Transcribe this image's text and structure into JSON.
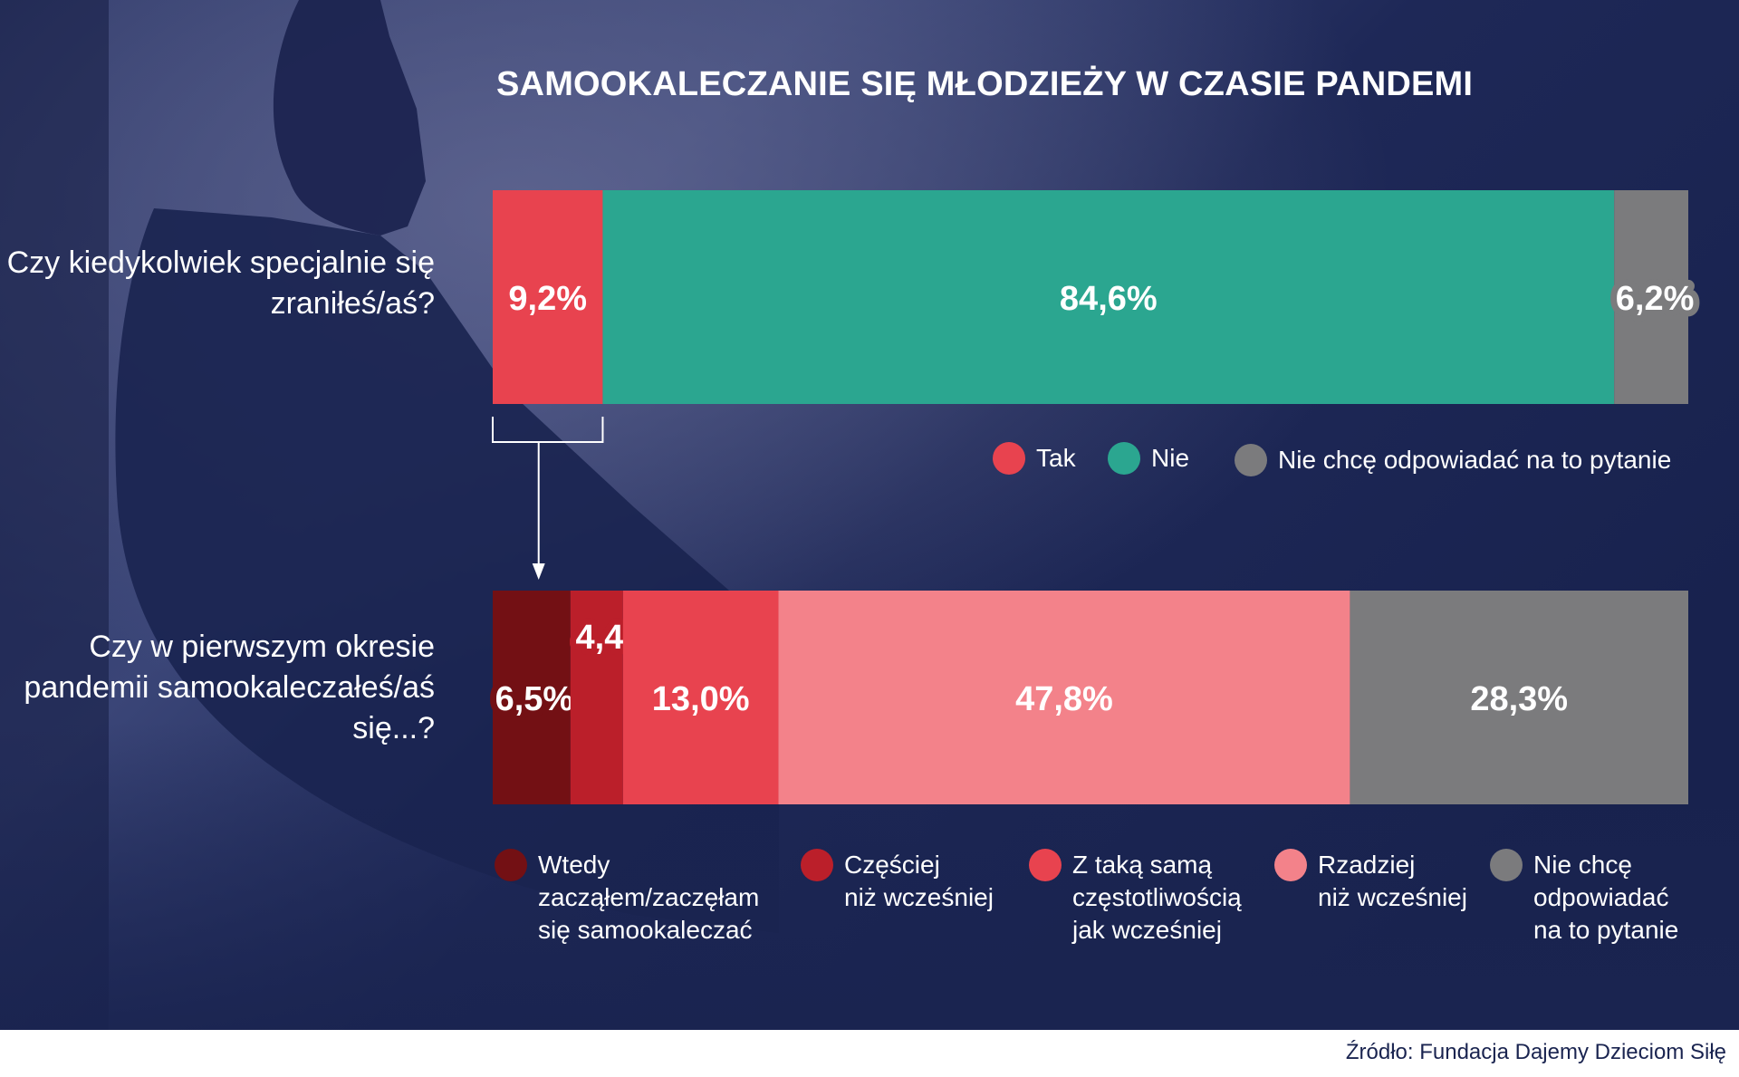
{
  "chart_data": [
    {
      "type": "bar",
      "orientation": "horizontal",
      "stacked": true,
      "category": "Czy kiedykolwiek specjalnie się zraniłeś/aś?",
      "series": [
        {
          "name": "Tak",
          "value": 9.2,
          "label": "9,2%",
          "color": "#e8434f"
        },
        {
          "name": "Nie",
          "value": 84.6,
          "label": "84,6%",
          "color": "#2ba690"
        },
        {
          "name": "Nie chcę odpowiadać na to pytanie",
          "value": 6.2,
          "label": "6,2%",
          "color": "#7b7b7d"
        }
      ],
      "xlim": [
        0,
        100
      ],
      "legend_position": "bottom-right"
    },
    {
      "type": "bar",
      "orientation": "horizontal",
      "stacked": true,
      "category": "Czy w pierwszym okresie pandemii samookaleczałeś/aś się...?",
      "series": [
        {
          "name": "Wtedy zacząłem/zaczęłam się samookaleczać",
          "value": 6.5,
          "label": "6,5%",
          "color": "#731014"
        },
        {
          "name": "Częściej niż wcześniej",
          "value": 4.4,
          "label": "4,4%",
          "color": "#bb1f2a"
        },
        {
          "name": "Z taką samą częstotliwością jak wcześniej",
          "value": 13.0,
          "label": "13,0%",
          "color": "#e8434f"
        },
        {
          "name": "Rzadziej niż wcześniej",
          "value": 47.8,
          "label": "47,8%",
          "color": "#f3828a"
        },
        {
          "name": "Nie chcę odpowiadać na to pytanie",
          "value": 28.3,
          "label": "28,3%",
          "color": "#7b7b7d"
        }
      ],
      "xlim": [
        0,
        100
      ],
      "legend_position": "bottom"
    }
  ],
  "title": "SAMOOKALECZANIE SIĘ MŁODZIEŻY W CZASIE PANDEMI",
  "questions": {
    "q1": "Czy kiedykolwiek specjalnie się zraniłeś/aś?",
    "q2": "Czy w pierwszym okresie pandemii samookaleczałeś/aś się...?"
  },
  "legend1": [
    {
      "label": "Tak",
      "color": "#e8434f"
    },
    {
      "label": "Nie",
      "color": "#2ba690"
    },
    {
      "label": "Nie chcę odpowiadać na to pytanie",
      "color": "#7b7b7d"
    }
  ],
  "legend2": [
    {
      "lines": [
        "Wtedy",
        "zacząłem/zaczęłam",
        "się samookaleczać"
      ],
      "color": "#731014"
    },
    {
      "lines": [
        "Częściej",
        "niż wcześniej"
      ],
      "color": "#bb1f2a"
    },
    {
      "lines": [
        "Z taką samą",
        "częstotliwością",
        "jak wcześniej"
      ],
      "color": "#e8434f"
    },
    {
      "lines": [
        "Rzadziej",
        "niż wcześniej"
      ],
      "color": "#f3828a"
    },
    {
      "lines": [
        "Nie chcę",
        "odpowiadać",
        "na to pytanie"
      ],
      "color": "#7b7b7d"
    }
  ],
  "source": "Źródło: Fundacja Dajemy Dzieciom Siłę"
}
